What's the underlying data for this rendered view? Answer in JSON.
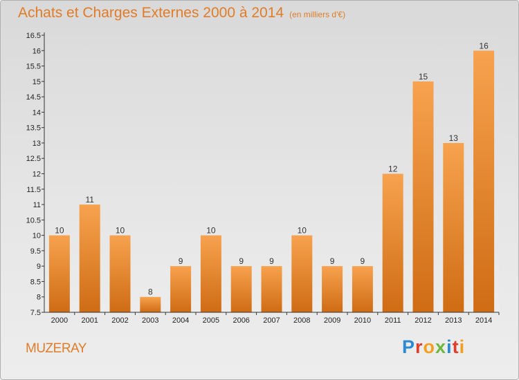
{
  "header": {
    "title": "Achats et Charges Externes 2000 à 2014",
    "subtitle": "(en milliers d'€)"
  },
  "footer": {
    "place": "MUZERAY",
    "logo": "Proxiti",
    "logo_colors": [
      "#2a8ad4",
      "#e23c2c",
      "#f3a020",
      "#6bb83a"
    ]
  },
  "chart_data": {
    "type": "bar",
    "title": "Achats et Charges Externes 2000 à 2014",
    "subtitle": "(en milliers d'€)",
    "xlabel": "",
    "ylabel": "",
    "categories": [
      "2000",
      "2001",
      "2002",
      "2003",
      "2004",
      "2005",
      "2006",
      "2007",
      "2008",
      "2009",
      "2010",
      "2011",
      "2012",
      "2013",
      "2014"
    ],
    "values": [
      10,
      11,
      10,
      8,
      9,
      10,
      9,
      9,
      10,
      9,
      9,
      12,
      15,
      13,
      16
    ],
    "ylim": [
      7.5,
      16.5
    ],
    "yticks": [
      "7.5",
      "8",
      "8.5",
      "9",
      "9.5",
      "10",
      "10.5",
      "11",
      "11.5",
      "12",
      "12.5",
      "13",
      "13.5",
      "14",
      "14.5",
      "15",
      "15.5",
      "16",
      "16.5"
    ],
    "grid": false,
    "bar_color_top": "#f7a24f",
    "bar_color_bottom": "#cf6c14"
  }
}
